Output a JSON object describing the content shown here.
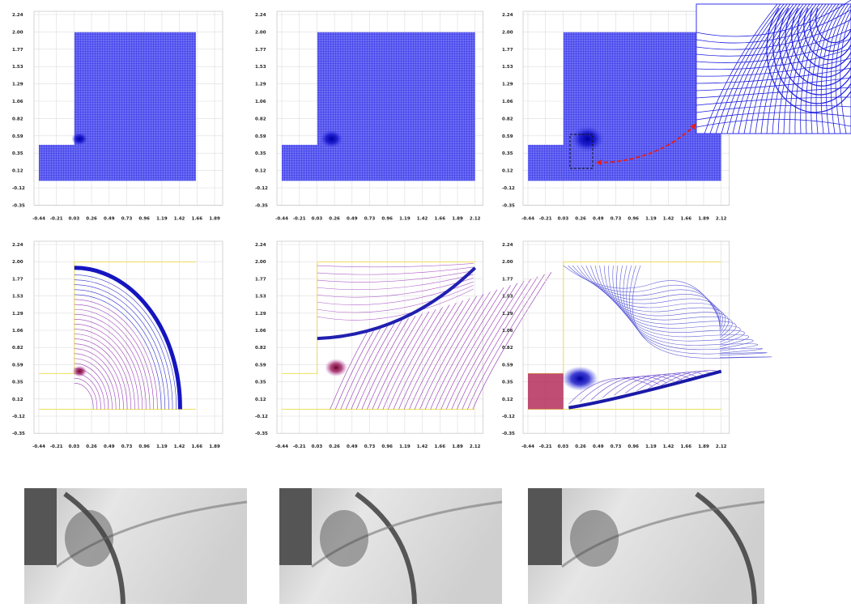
{
  "axis": {
    "y_labels": [
      "2.24",
      "2.00",
      "1.77",
      "1.53",
      "1.29",
      "1.06",
      "0.82",
      "0.59",
      "0.35",
      "0.12",
      "-0.12",
      "-0.35"
    ],
    "x_labels": [
      "-0.44",
      "-0.21",
      "0.03",
      "0.26",
      "0.49",
      "0.73",
      "0.96",
      "1.19",
      "1.42",
      "1.66",
      "1.89",
      "2.12"
    ]
  }
}
